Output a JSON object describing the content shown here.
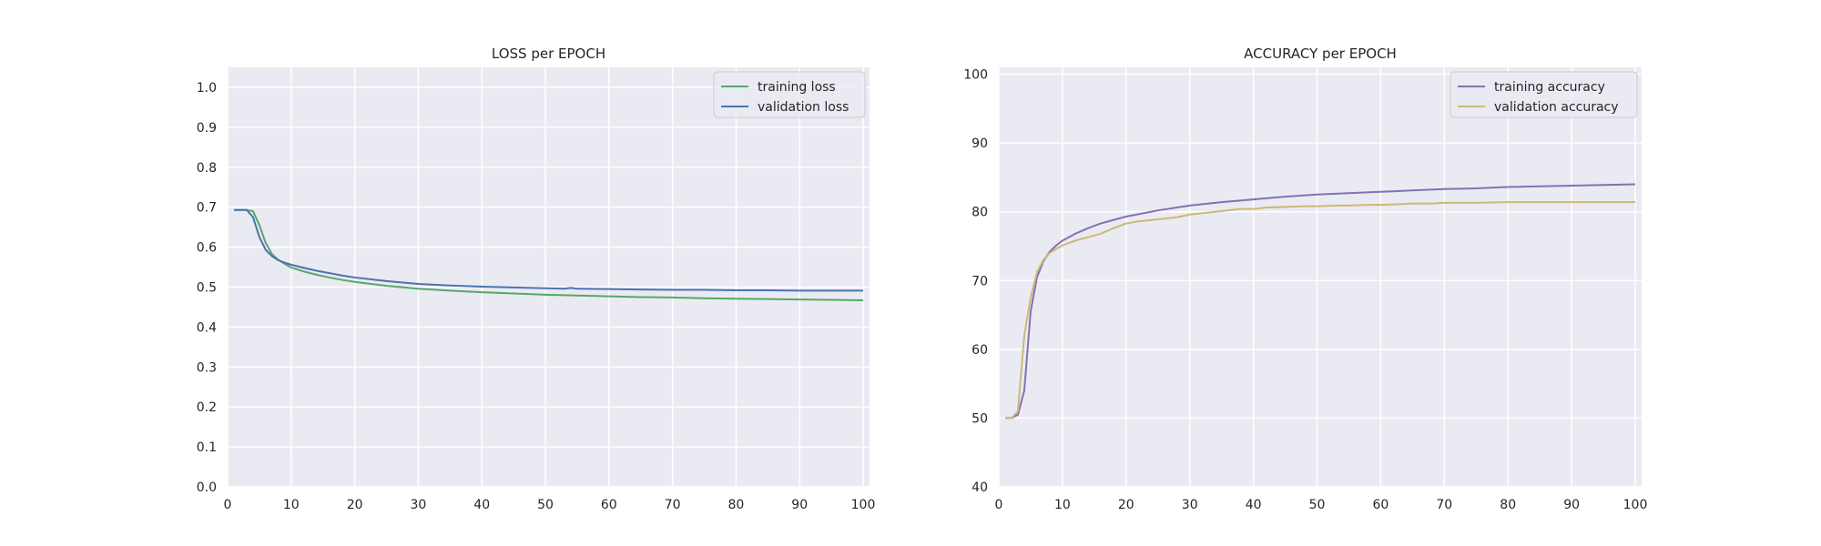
{
  "chart_data": [
    {
      "type": "line",
      "title": "LOSS per EPOCH",
      "xlabel": "",
      "ylabel": "",
      "xlim": [
        0,
        101
      ],
      "ylim": [
        0,
        1.05
      ],
      "xticks": [
        0,
        10,
        20,
        30,
        40,
        50,
        60,
        70,
        80,
        90,
        100
      ],
      "xtick_labels": [
        "0",
        "10",
        "20",
        "30",
        "40",
        "50",
        "60",
        "70",
        "80",
        "90",
        "100"
      ],
      "yticks": [
        0,
        0.1,
        0.2,
        0.3,
        0.4,
        0.5,
        0.6,
        0.7,
        0.8,
        0.9,
        1.0
      ],
      "ytick_labels": [
        "0.0",
        "0.1",
        "0.2",
        "0.3",
        "0.4",
        "0.5",
        "0.6",
        "0.7",
        "0.8",
        "0.9",
        "1.0"
      ],
      "grid": true,
      "legend_position": "top-right",
      "series": [
        {
          "name": "training loss",
          "color": "#55a868",
          "x": [
            1,
            2,
            3,
            4,
            5,
            6,
            7,
            8,
            9,
            10,
            12,
            14,
            16,
            18,
            20,
            25,
            30,
            35,
            40,
            45,
            50,
            55,
            60,
            65,
            70,
            75,
            80,
            85,
            90,
            95,
            100
          ],
          "y": [
            0.693,
            0.693,
            0.693,
            0.69,
            0.655,
            0.61,
            0.582,
            0.568,
            0.558,
            0.549,
            0.539,
            0.531,
            0.524,
            0.518,
            0.513,
            0.503,
            0.496,
            0.491,
            0.487,
            0.484,
            0.481,
            0.479,
            0.477,
            0.475,
            0.474,
            0.472,
            0.471,
            0.47,
            0.469,
            0.468,
            0.467
          ]
        },
        {
          "name": "validation loss",
          "color": "#4c72b0",
          "x": [
            1,
            2,
            3,
            4,
            5,
            6,
            7,
            8,
            9,
            10,
            12,
            14,
            16,
            18,
            20,
            25,
            30,
            35,
            40,
            45,
            50,
            53,
            54,
            55,
            60,
            65,
            70,
            75,
            80,
            85,
            90,
            95,
            100
          ],
          "y": [
            0.693,
            0.693,
            0.693,
            0.675,
            0.625,
            0.593,
            0.577,
            0.567,
            0.561,
            0.556,
            0.548,
            0.541,
            0.535,
            0.529,
            0.524,
            0.515,
            0.508,
            0.504,
            0.501,
            0.499,
            0.497,
            0.496,
            0.498,
            0.496,
            0.495,
            0.494,
            0.493,
            0.493,
            0.492,
            0.492,
            0.491,
            0.491,
            0.491
          ]
        }
      ]
    },
    {
      "type": "line",
      "title": "ACCURACY per EPOCH",
      "xlabel": "",
      "ylabel": "",
      "xlim": [
        0,
        101
      ],
      "ylim": [
        40,
        101
      ],
      "xticks": [
        0,
        10,
        20,
        30,
        40,
        50,
        60,
        70,
        80,
        90,
        100
      ],
      "xtick_labels": [
        "0",
        "10",
        "20",
        "30",
        "40",
        "50",
        "60",
        "70",
        "80",
        "90",
        "100"
      ],
      "yticks": [
        40,
        50,
        60,
        70,
        80,
        90,
        100
      ],
      "ytick_labels": [
        "40",
        "50",
        "60",
        "70",
        "80",
        "90",
        "100"
      ],
      "grid": true,
      "legend_position": "top-right",
      "series": [
        {
          "name": "training accuracy",
          "color": "#8172b3",
          "x": [
            1,
            2,
            3,
            4,
            5,
            6,
            7,
            8,
            9,
            10,
            12,
            14,
            16,
            18,
            20,
            25,
            30,
            35,
            40,
            45,
            50,
            55,
            60,
            65,
            70,
            75,
            80,
            85,
            90,
            95,
            100
          ],
          "y": [
            50,
            50,
            50.5,
            54,
            65.5,
            70.5,
            72.8,
            74.2,
            75.1,
            75.8,
            76.8,
            77.6,
            78.3,
            78.8,
            79.3,
            80.2,
            80.9,
            81.4,
            81.8,
            82.2,
            82.5,
            82.7,
            82.9,
            83.1,
            83.3,
            83.4,
            83.6,
            83.7,
            83.8,
            83.9,
            84.0
          ]
        },
        {
          "name": "validation accuracy",
          "color": "#ccb974",
          "x": [
            1,
            2,
            3,
            4,
            5,
            6,
            7,
            8,
            9,
            10,
            12,
            14,
            16,
            18,
            20,
            22,
            25,
            28,
            30,
            33,
            35,
            38,
            40,
            42,
            45,
            48,
            50,
            53,
            55,
            58,
            60,
            63,
            65,
            68,
            70,
            75,
            80,
            85,
            90,
            95,
            100
          ],
          "y": [
            50,
            50,
            51,
            62,
            67.5,
            71.2,
            73,
            74,
            74.6,
            75.1,
            75.8,
            76.3,
            76.8,
            77.6,
            78.3,
            78.6,
            78.9,
            79.2,
            79.6,
            79.9,
            80.1,
            80.4,
            80.4,
            80.6,
            80.7,
            80.8,
            80.8,
            80.9,
            80.9,
            81.0,
            81.0,
            81.1,
            81.2,
            81.2,
            81.3,
            81.3,
            81.4,
            81.4,
            81.4,
            81.4,
            81.4
          ]
        }
      ]
    }
  ]
}
